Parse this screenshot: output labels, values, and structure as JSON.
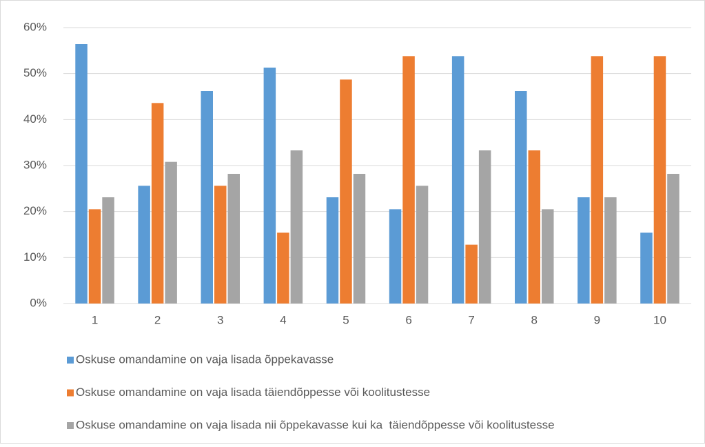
{
  "chart_data": {
    "type": "bar",
    "categories": [
      "1",
      "2",
      "3",
      "4",
      "5",
      "6",
      "7",
      "8",
      "9",
      "10"
    ],
    "series": [
      {
        "name": "Oskuse omandamine on vaja lisada õppekavasse",
        "color": "#5b9bd5",
        "values": [
          56.4,
          25.6,
          46.2,
          51.3,
          23.1,
          20.5,
          53.8,
          46.2,
          23.1,
          15.4
        ]
      },
      {
        "name": "Oskuse omandamine on vaja lisada täiendõppesse või koolitustesse",
        "color": "#ed7d31",
        "values": [
          20.5,
          43.6,
          25.6,
          15.4,
          48.7,
          53.8,
          12.8,
          33.3,
          53.8,
          53.8
        ]
      },
      {
        "name": "Oskuse omandamine on vaja lisada nii õppekavasse kui ka  täiendõppesse või koolitustesse",
        "color": "#a5a5a5",
        "values": [
          23.1,
          30.8,
          28.2,
          33.3,
          28.2,
          25.6,
          33.3,
          20.5,
          23.1,
          28.2
        ]
      }
    ],
    "ylim": [
      0,
      60
    ],
    "yticks": [
      {
        "value": 0,
        "label": "0%"
      },
      {
        "value": 10,
        "label": "10%"
      },
      {
        "value": 20,
        "label": "20%"
      },
      {
        "value": 30,
        "label": "30%"
      },
      {
        "value": 40,
        "label": "40%"
      },
      {
        "value": 50,
        "label": "50%"
      },
      {
        "value": 60,
        "label": "60%"
      }
    ],
    "grid": true,
    "legend": "bottom"
  }
}
